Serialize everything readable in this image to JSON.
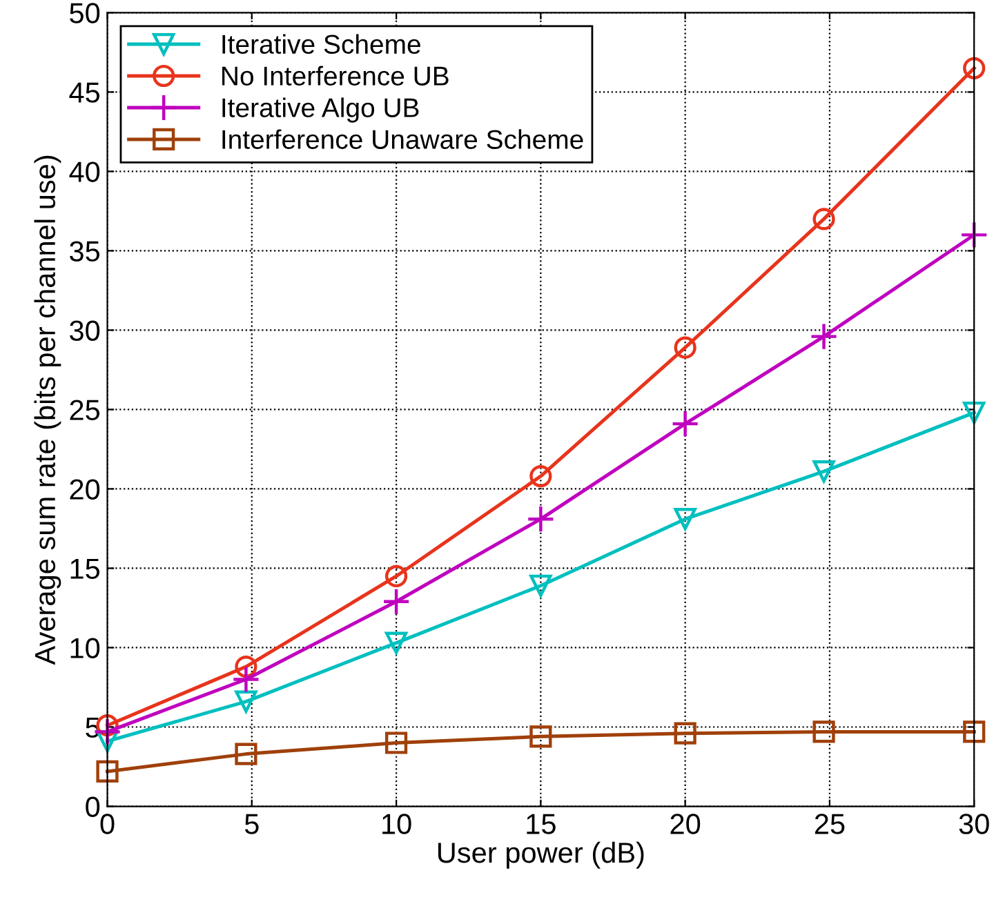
{
  "chart_data": {
    "type": "line",
    "xlabel": "User power (dB)",
    "ylabel": "Average sum rate (bits per channel use)",
    "x": [
      0,
      4.8,
      10,
      15,
      20,
      24.8,
      30
    ],
    "series": [
      {
        "name": "Iterative Scheme",
        "color": "#00bfbf",
        "marker": "triangle",
        "values": [
          4.1,
          6.6,
          10.3,
          13.9,
          18.1,
          21.1,
          24.8
        ]
      },
      {
        "name": "No Interference UB",
        "color": "#e8341c",
        "marker": "circle",
        "values": [
          5.1,
          8.8,
          14.5,
          20.8,
          28.9,
          37.0,
          46.5
        ]
      },
      {
        "name": "Iterative Algo UB",
        "color": "#bf00bf",
        "marker": "cross",
        "values": [
          4.7,
          8.0,
          12.9,
          18.1,
          24.1,
          29.6,
          36.0
        ]
      },
      {
        "name": "Interference Unaware Scheme",
        "color": "#a0400a",
        "marker": "square",
        "values": [
          2.2,
          3.3,
          4.0,
          4.4,
          4.6,
          4.7,
          4.7
        ]
      }
    ],
    "xlim": [
      0,
      30
    ],
    "xticks": [
      0,
      5,
      10,
      15,
      20,
      25,
      30
    ],
    "ylim": [
      0,
      50
    ],
    "yticks": [
      0,
      5,
      10,
      15,
      20,
      25,
      30,
      35,
      40,
      45,
      50
    ],
    "grid": true,
    "legend": "top left",
    "line_style": "solid"
  }
}
